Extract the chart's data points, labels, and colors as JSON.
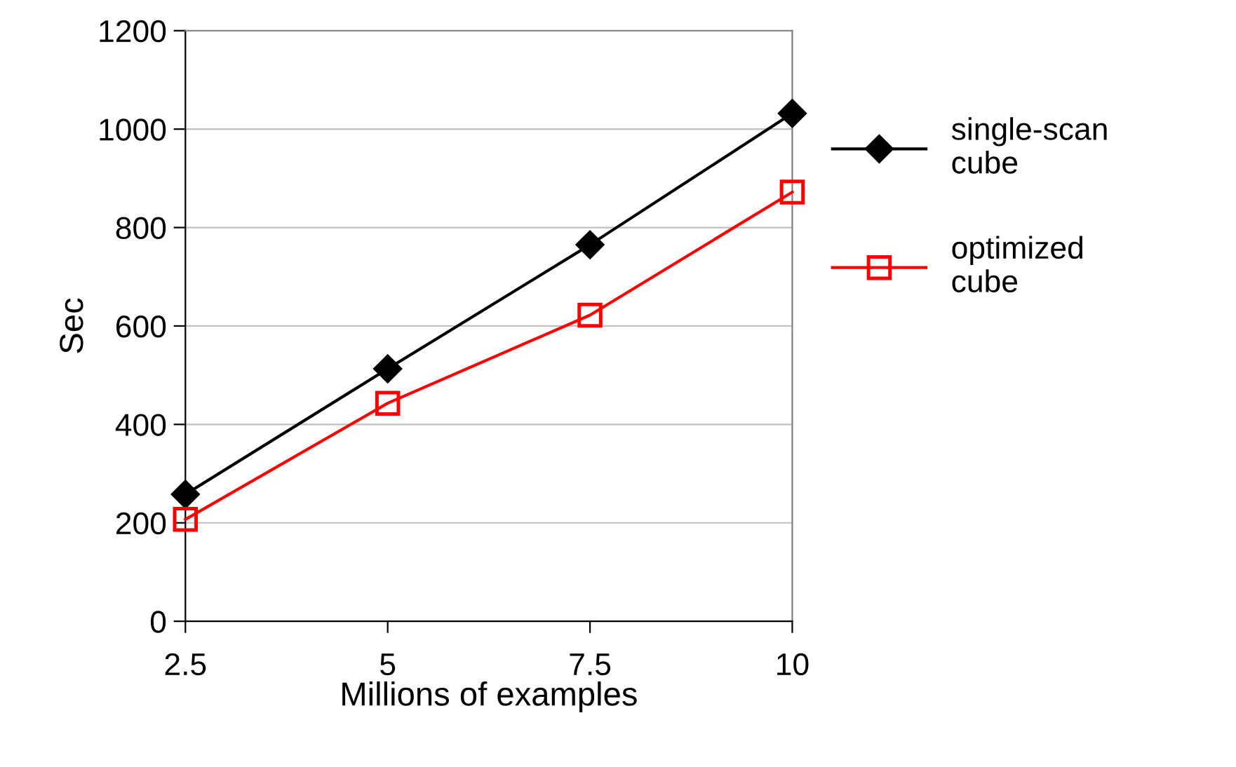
{
  "chart_data": {
    "type": "line",
    "xlabel": "Millions of examples",
    "ylabel": "Sec",
    "x": [
      2.5,
      5,
      7.5,
      10
    ],
    "series": [
      {
        "name": "single-scan\ncube",
        "color": "#000000",
        "marker": "diamond",
        "values": [
          258,
          513,
          765,
          1032
        ]
      },
      {
        "name": "optimized\ncube",
        "color": "#ff0000",
        "marker": "square",
        "values": [
          207,
          443,
          622,
          872
        ]
      }
    ],
    "xlim": [
      2.5,
      10
    ],
    "xticks": [
      2.5,
      5,
      7.5,
      10
    ],
    "ylim": [
      0,
      1200
    ],
    "yticks": [
      0,
      200,
      400,
      600,
      800,
      1000,
      1200
    ],
    "grid": "y",
    "legend": "right",
    "line_style": "solid"
  }
}
